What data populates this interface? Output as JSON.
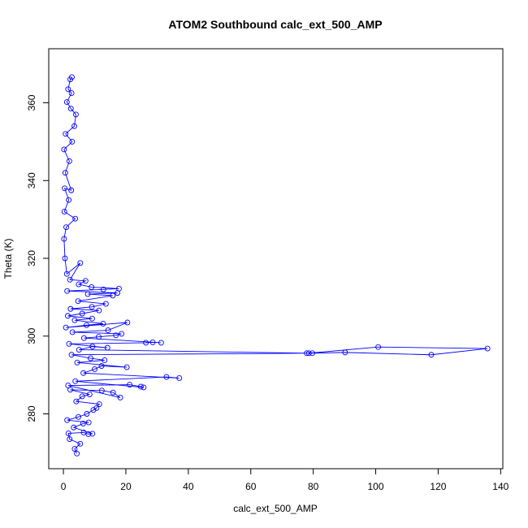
{
  "chart_data": {
    "type": "line",
    "title": "ATOM2 Southbound calc_ext_500_AMP",
    "xlabel": "calc_ext_500_AMP",
    "ylabel": "Theta (K)",
    "xlim": [
      -4.7,
      140.7
    ],
    "ylim": [
      265.9,
      373.9
    ],
    "xticks": [
      0,
      20,
      40,
      60,
      80,
      100,
      120,
      140
    ],
    "yticks": [
      280,
      300,
      320,
      340,
      360
    ],
    "grid": false,
    "series_color": "#0000ff",
    "marker": "open-circle",
    "series": [
      {
        "points": [
          [
            4.3,
            269.8
          ],
          [
            3.6,
            271.0
          ],
          [
            5.4,
            272.3
          ],
          [
            2.0,
            273.5
          ],
          [
            1.6,
            275.0
          ],
          [
            6.5,
            275.2
          ],
          [
            8.0,
            274.8
          ],
          [
            9.3,
            274.9
          ],
          [
            3.3,
            276.5
          ],
          [
            6.3,
            277.5
          ],
          [
            8.1,
            277.8
          ],
          [
            1.2,
            278.4
          ],
          [
            4.8,
            279.2
          ],
          [
            7.5,
            280.0
          ],
          [
            9.6,
            281.0
          ],
          [
            10.6,
            281.5
          ],
          [
            11.5,
            282.5
          ],
          [
            4.1,
            283.2
          ],
          [
            6.0,
            284.5
          ],
          [
            8.4,
            285.0
          ],
          [
            2.2,
            286.2
          ],
          [
            12.3,
            286.0
          ],
          [
            15.9,
            285.5
          ],
          [
            18.2,
            284.2
          ],
          [
            1.5,
            287.3
          ],
          [
            21.2,
            287.5
          ],
          [
            24.8,
            287.0
          ],
          [
            25.7,
            286.8
          ],
          [
            3.8,
            288.4
          ],
          [
            33.0,
            289.5
          ],
          [
            37.1,
            289.2
          ],
          [
            6.4,
            290.5
          ],
          [
            10.0,
            291.5
          ],
          [
            12.2,
            292.3
          ],
          [
            20.3,
            292.0
          ],
          [
            4.4,
            293.2
          ],
          [
            13.2,
            293.8
          ],
          [
            8.7,
            294.3
          ],
          [
            2.6,
            295.2
          ],
          [
            77.9,
            295.6
          ],
          [
            79.7,
            295.6
          ],
          [
            90.2,
            295.8
          ],
          [
            117.8,
            295.2
          ],
          [
            135.8,
            296.8
          ],
          [
            100.8,
            297.2
          ],
          [
            78.6,
            295.6
          ],
          [
            5.0,
            296.5
          ],
          [
            9.3,
            297.3
          ],
          [
            14.1,
            297.0
          ],
          [
            1.8,
            298.0
          ],
          [
            26.4,
            298.3
          ],
          [
            28.6,
            298.4
          ],
          [
            31.3,
            298.3
          ],
          [
            6.6,
            299.5
          ],
          [
            11.3,
            299.8
          ],
          [
            16.8,
            300.2
          ],
          [
            18.6,
            300.6
          ],
          [
            2.9,
            301.0
          ],
          [
            14.3,
            301.5
          ],
          [
            20.5,
            303.5
          ],
          [
            0.8,
            302.2
          ],
          [
            7.4,
            302.8
          ],
          [
            12.7,
            303.2
          ],
          [
            3.6,
            304.1
          ],
          [
            9.2,
            304.5
          ],
          [
            1.4,
            305.2
          ],
          [
            6.0,
            305.8
          ],
          [
            11.4,
            306.6
          ],
          [
            2.3,
            307.0
          ],
          [
            9.1,
            307.5
          ],
          [
            13.6,
            308.3
          ],
          [
            4.7,
            309.0
          ],
          [
            15.8,
            310.4
          ],
          [
            7.8,
            310.8
          ],
          [
            17.3,
            311.1
          ],
          [
            1.2,
            311.6
          ],
          [
            12.8,
            312.0
          ],
          [
            17.8,
            312.2
          ],
          [
            9.0,
            312.6
          ],
          [
            4.9,
            313.3
          ],
          [
            7.1,
            314.2
          ],
          [
            2.1,
            314.5
          ],
          [
            5.4,
            318.8
          ],
          [
            1.1,
            316.0
          ],
          [
            0.5,
            320.0
          ],
          [
            0.2,
            325.0
          ],
          [
            0.9,
            328.0
          ],
          [
            3.8,
            330.2
          ],
          [
            0.3,
            332.0
          ],
          [
            1.7,
            335.0
          ],
          [
            0.4,
            338.0
          ],
          [
            2.5,
            337.5
          ],
          [
            0.6,
            342.0
          ],
          [
            1.9,
            345.0
          ],
          [
            0.2,
            348.0
          ],
          [
            2.8,
            350.0
          ],
          [
            0.7,
            352.0
          ],
          [
            3.5,
            354.0
          ],
          [
            4.0,
            357.0
          ],
          [
            2.4,
            358.5
          ],
          [
            1.1,
            360.2
          ],
          [
            2.6,
            362.5
          ],
          [
            1.5,
            363.5
          ],
          [
            2.2,
            366.0
          ],
          [
            2.7,
            366.6
          ]
        ]
      }
    ]
  }
}
